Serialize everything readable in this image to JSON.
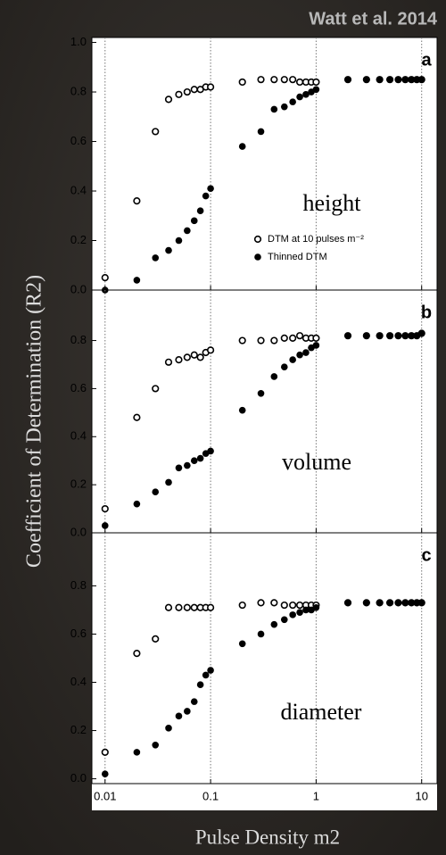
{
  "source": "Watt et al. 2014",
  "ylabel": "Coefficient of Determination (R2)",
  "xlabel": "Pulse Density m2",
  "chart_data": [
    {
      "type": "scatter",
      "panel_letter": "a",
      "annotation": "height",
      "xscale": "log",
      "xlim": [
        0.0075,
        14
      ],
      "ylim": [
        0,
        1.02
      ],
      "xticks": [
        0.01,
        0.1,
        1,
        10
      ],
      "yticks": [
        {
          "value": 0,
          "label": "0.0"
        },
        0.2,
        0.4,
        0.6,
        0.8,
        {
          "value": 1,
          "label": "1.0"
        }
      ],
      "grid": true,
      "legend": "center-right",
      "x": [
        0.01,
        0.02,
        0.03,
        0.04,
        0.05,
        0.06,
        0.07,
        0.08,
        0.09,
        0.1,
        0.2,
        0.3,
        0.4,
        0.5,
        0.6,
        0.7,
        0.8,
        0.9,
        1,
        2,
        3,
        4,
        5,
        6,
        7,
        8,
        9,
        10
      ],
      "series": [
        {
          "name": "DTM at 10 pulses m⁻²",
          "color": "#000000",
          "marker": "open",
          "values": [
            0.05,
            0.36,
            0.64,
            0.77,
            0.79,
            0.8,
            0.81,
            0.81,
            0.82,
            0.82,
            0.84,
            0.85,
            0.85,
            0.85,
            0.85,
            0.84,
            0.84,
            0.84,
            0.84,
            0.85,
            0.85,
            0.85,
            0.85,
            0.85,
            0.85,
            0.85,
            0.85,
            0.85
          ]
        },
        {
          "name": "Thinned DTM",
          "color": "#000000",
          "marker": "filled",
          "values": [
            0,
            0.04,
            0.13,
            0.16,
            0.2,
            0.24,
            0.28,
            0.32,
            0.38,
            0.41,
            0.58,
            0.64,
            0.73,
            0.74,
            0.76,
            0.78,
            0.79,
            0.8,
            0.81,
            0.85,
            0.85,
            0.85,
            0.85,
            0.85,
            0.85,
            0.85,
            0.85,
            0.85
          ]
        }
      ]
    },
    {
      "type": "scatter",
      "panel_letter": "b",
      "annotation": "volume",
      "xscale": "log",
      "xlim": [
        0.0075,
        14
      ],
      "ylim": [
        0,
        1.01
      ],
      "xticks": [
        0.01,
        0.1,
        1,
        10
      ],
      "yticks": [
        {
          "value": 0,
          "label": "0.0"
        },
        0.2,
        0.4,
        0.6,
        0.8
      ],
      "grid": true,
      "x": [
        0.01,
        0.02,
        0.03,
        0.04,
        0.05,
        0.06,
        0.07,
        0.08,
        0.09,
        0.1,
        0.2,
        0.3,
        0.4,
        0.5,
        0.6,
        0.7,
        0.8,
        0.9,
        1,
        2,
        3,
        4,
        5,
        6,
        7,
        8,
        9,
        10
      ],
      "series": [
        {
          "color": "#000000",
          "marker": "open",
          "values": [
            0.1,
            0.48,
            0.6,
            0.71,
            0.72,
            0.73,
            0.74,
            0.73,
            0.75,
            0.76,
            0.8,
            0.8,
            0.8,
            0.81,
            0.81,
            0.82,
            0.81,
            0.81,
            0.81,
            0.82,
            0.82,
            0.82,
            0.82,
            0.82,
            0.82,
            0.82,
            0.82,
            0.83
          ]
        },
        {
          "color": "#000000",
          "marker": "filled",
          "values": [
            0.03,
            0.12,
            0.17,
            0.21,
            0.27,
            0.28,
            0.3,
            0.31,
            0.33,
            0.34,
            0.51,
            0.58,
            0.65,
            0.69,
            0.72,
            0.74,
            0.75,
            0.77,
            0.78,
            0.82,
            0.82,
            0.82,
            0.82,
            0.82,
            0.82,
            0.82,
            0.82,
            0.83
          ]
        }
      ]
    },
    {
      "type": "scatter",
      "panel_letter": "c",
      "annotation": "diameter",
      "xscale": "log",
      "xlim": [
        0.0075,
        14
      ],
      "ylim": [
        -0.02,
        1.02
      ],
      "xticks": [
        0.01,
        0.1,
        1,
        10
      ],
      "yticks": [
        {
          "value": 0,
          "label": "0.0"
        },
        0.2,
        0.4,
        0.6,
        0.8
      ],
      "grid": true,
      "x": [
        0.01,
        0.02,
        0.03,
        0.04,
        0.05,
        0.06,
        0.07,
        0.08,
        0.09,
        0.1,
        0.2,
        0.3,
        0.4,
        0.5,
        0.6,
        0.7,
        0.8,
        0.9,
        1,
        2,
        3,
        4,
        5,
        6,
        7,
        8,
        9,
        10
      ],
      "series": [
        {
          "color": "#000000",
          "marker": "open",
          "values": [
            0.11,
            0.52,
            0.58,
            0.71,
            0.71,
            0.71,
            0.71,
            0.71,
            0.71,
            0.71,
            0.72,
            0.73,
            0.73,
            0.72,
            0.72,
            0.72,
            0.72,
            0.72,
            0.72,
            0.73,
            0.73,
            0.73,
            0.73,
            0.73,
            0.73,
            0.73,
            0.73,
            0.73
          ]
        },
        {
          "color": "#000000",
          "marker": "filled",
          "values": [
            0.02,
            0.11,
            0.14,
            0.21,
            0.26,
            0.28,
            0.32,
            0.39,
            0.43,
            0.45,
            0.56,
            0.6,
            0.64,
            0.66,
            0.68,
            0.69,
            0.7,
            0.7,
            0.71,
            0.73,
            0.73,
            0.73,
            0.73,
            0.73,
            0.73,
            0.73,
            0.73,
            0.73
          ]
        }
      ]
    }
  ]
}
